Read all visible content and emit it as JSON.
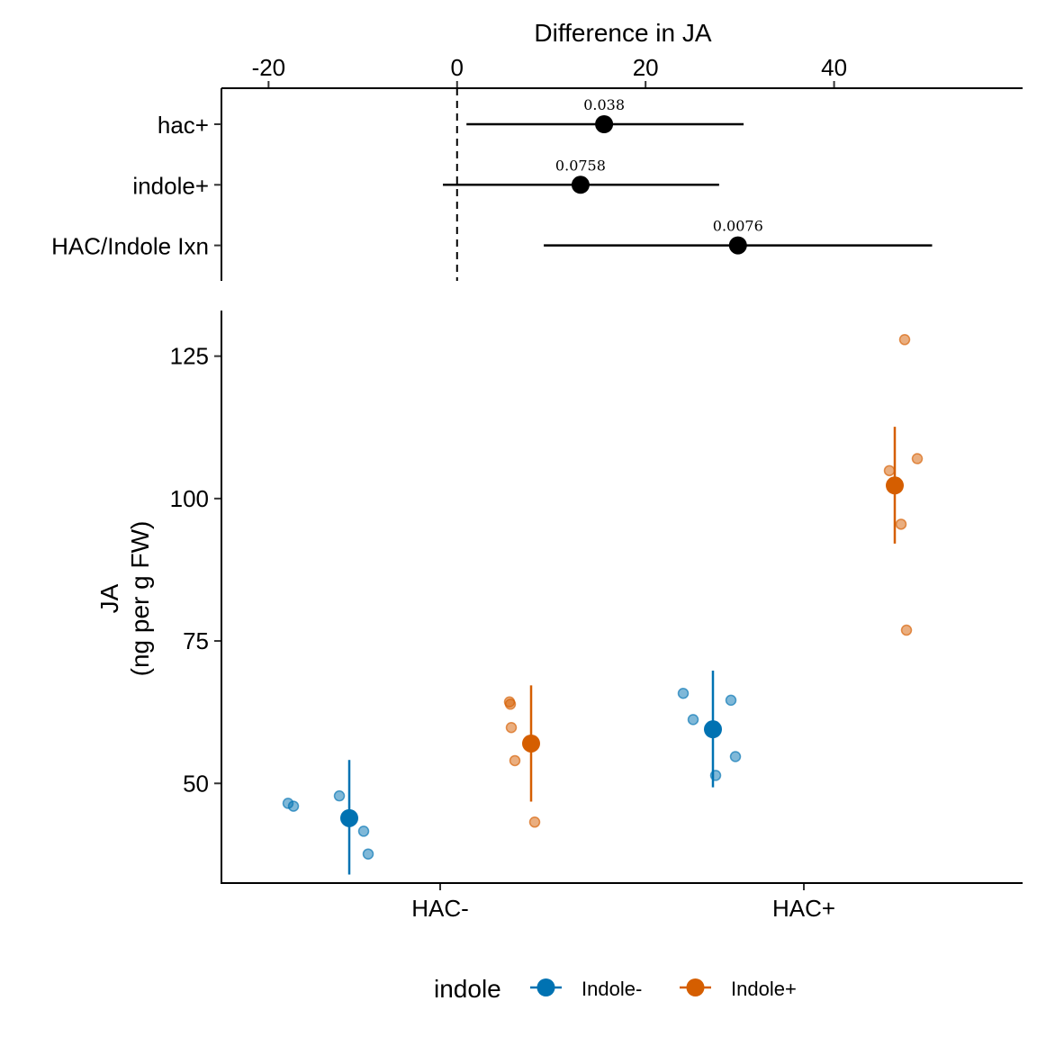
{
  "chart_data": [
    {
      "type": "scatter",
      "subtype": "forest-plot",
      "xlabel": "Difference in JA",
      "xlim": [
        -25,
        60
      ],
      "xticks": [
        -20,
        0,
        20,
        40
      ],
      "xtick_labels": [
        "-20",
        "0",
        "20",
        "40"
      ],
      "reference_line": 0,
      "terms": [
        {
          "label": "hac+",
          "estimate": 15.6,
          "ci_low": 1.0,
          "ci_high": 30.4,
          "p_label": "0.038"
        },
        {
          "label": "indole+",
          "estimate": 13.1,
          "ci_low": -1.5,
          "ci_high": 27.8,
          "p_label": "0.0758"
        },
        {
          "label": "HAC/Indole Ixn",
          "estimate": 29.8,
          "ci_low": 9.2,
          "ci_high": 50.4,
          "p_label": "0.0076"
        }
      ],
      "color": "#000000"
    },
    {
      "type": "scatter",
      "subtype": "dot-and-interval",
      "ylabel_lines": [
        "JA",
        "(ng per g FW)"
      ],
      "ylim": [
        32.5,
        133
      ],
      "yticks": [
        50,
        75,
        100,
        125
      ],
      "ytick_labels": [
        "50",
        "75",
        "100",
        "125"
      ],
      "categories": [
        "HAC-",
        "HAC+"
      ],
      "legend": {
        "title": "indole",
        "position": "bottom"
      },
      "series": [
        {
          "name": "Indole-",
          "color": "#0072B2",
          "groups": [
            {
              "category": "HAC-",
              "mean": 43.9,
              "ci": [
                34.0,
                54.1
              ],
              "points": [
                46.5,
                46.0,
                47.8,
                41.6,
                37.6
              ]
            },
            {
              "category": "HAC+",
              "mean": 59.5,
              "ci": [
                49.3,
                69.8
              ],
              "points": [
                65.8,
                51.4,
                61.2,
                64.6,
                54.7
              ]
            }
          ]
        },
        {
          "name": "Indole+",
          "color": "#D55E00",
          "groups": [
            {
              "category": "HAC-",
              "mean": 57.0,
              "ci": [
                46.8,
                67.2
              ],
              "points": [
                63.9,
                64.3,
                59.8,
                54.0,
                43.2
              ]
            },
            {
              "category": "HAC+",
              "mean": 102.3,
              "ci": [
                92.1,
                112.6
              ],
              "points": [
                104.9,
                127.9,
                95.5,
                107.0,
                76.9
              ]
            }
          ]
        }
      ]
    }
  ]
}
